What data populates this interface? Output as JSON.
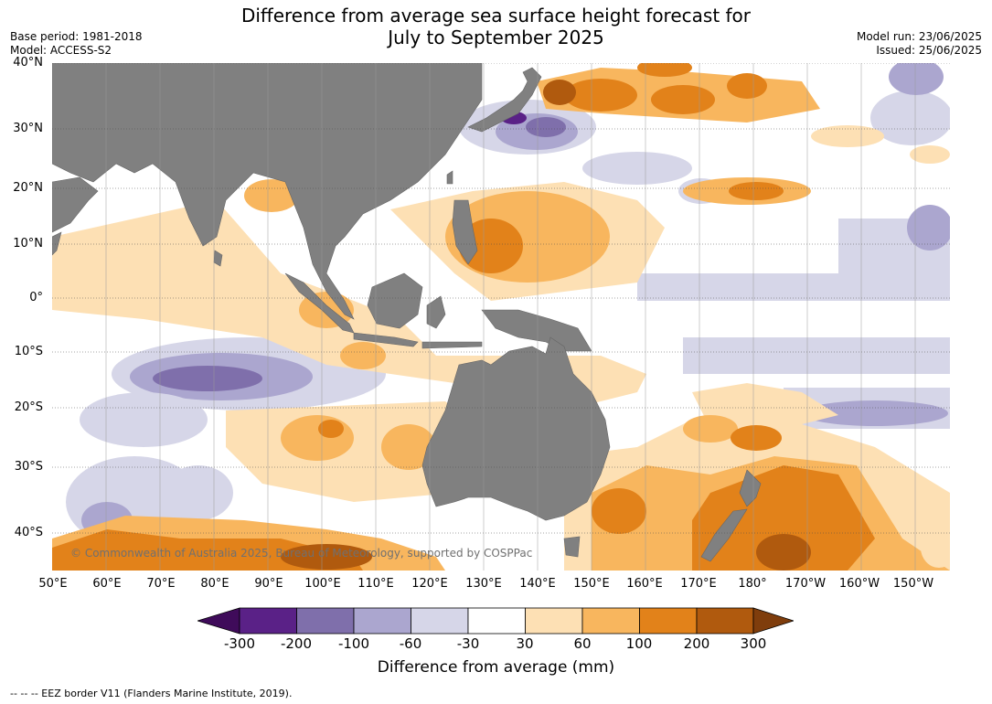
{
  "header": {
    "title_line1": "Difference from average sea surface height forecast for",
    "title_line2": "July to September 2025",
    "base_period": "Base period: 1981-2018",
    "model": "Model: ACCESS-S2",
    "model_run": "Model run: 23/06/2025",
    "issued": "Issued: 25/06/2025"
  },
  "map": {
    "lat_labels": [
      "40°N",
      "30°N",
      "20°N",
      "10°N",
      "0°",
      "10°S",
      "20°S",
      "30°S",
      "40°S"
    ],
    "lon_labels": [
      "50°E",
      "60°E",
      "70°E",
      "80°E",
      "90°E",
      "100°E",
      "110°E",
      "120°E",
      "130°E",
      "140°E",
      "150°E",
      "160°E",
      "170°E",
      "180°",
      "170°W",
      "160°W",
      "150°W"
    ],
    "copyright": "© Commonwealth of Australia 2025, Bureau of Meteorology, supported by COSPPac",
    "land_color": "#808080",
    "ocean_color": "#ffffff"
  },
  "colorbar": {
    "ticks": [
      "-300",
      "-200",
      "-100",
      "-60",
      "-30",
      "30",
      "60",
      "100",
      "200",
      "300"
    ],
    "colors": [
      "#3f0b5a",
      "#5a2187",
      "#7f6fab",
      "#aba6cf",
      "#d6d6e8",
      "#ffffff",
      "#fde0b4",
      "#f8b65e",
      "#e2821a",
      "#b05a0e",
      "#7f3d0c"
    ],
    "title": "Difference from average (mm)"
  },
  "footer": {
    "legend": "--  --  -- EEZ border V11 (Flanders Marine Institute, 2019)."
  }
}
